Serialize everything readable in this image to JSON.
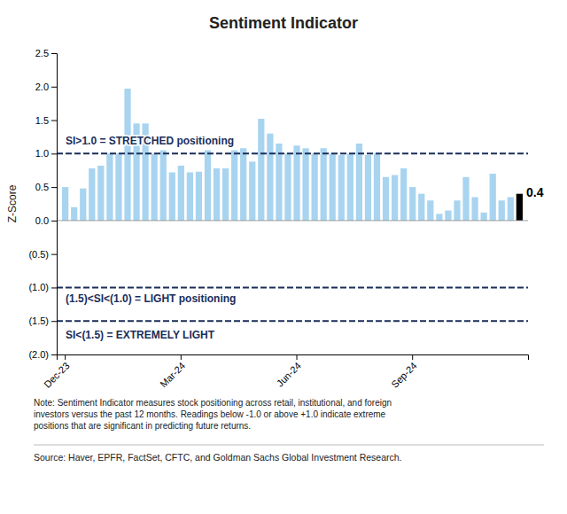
{
  "chart_data": {
    "type": "bar",
    "title": "Sentiment Indicator",
    "y_label": "Z-Score",
    "categories": [
      "Dec-23",
      null,
      null,
      null,
      null,
      null,
      null,
      null,
      null,
      null,
      null,
      null,
      null,
      "Mar-24",
      null,
      null,
      null,
      null,
      null,
      null,
      null,
      null,
      null,
      null,
      null,
      null,
      "Jun-24",
      null,
      null,
      null,
      null,
      null,
      null,
      null,
      null,
      null,
      null,
      null,
      null,
      "Sep-24",
      null,
      null,
      null,
      null,
      null,
      null,
      null,
      null,
      null,
      null,
      null,
      null
    ],
    "values": [
      0.5,
      0.2,
      0.48,
      0.78,
      0.82,
      1.0,
      1.0,
      1.97,
      1.45,
      1.45,
      1.0,
      1.05,
      0.72,
      0.82,
      0.72,
      0.73,
      1.05,
      0.78,
      0.78,
      1.05,
      1.08,
      0.88,
      1.52,
      1.3,
      1.15,
      1.0,
      1.12,
      1.08,
      1.0,
      1.08,
      1.0,
      0.98,
      1.0,
      1.15,
      0.98,
      1.0,
      0.65,
      0.68,
      0.78,
      0.5,
      0.4,
      0.3,
      0.1,
      0.15,
      0.3,
      0.65,
      0.35,
      0.12,
      0.7,
      0.3,
      0.35,
      0.4
    ],
    "colors": [
      "#a8d4f0",
      "#a8d4f0",
      "#a8d4f0",
      "#a8d4f0",
      "#a8d4f0",
      "#a8d4f0",
      "#a8d4f0",
      "#a8d4f0",
      "#a8d4f0",
      "#a8d4f0",
      "#a8d4f0",
      "#a8d4f0",
      "#a8d4f0",
      "#a8d4f0",
      "#a8d4f0",
      "#a8d4f0",
      "#a8d4f0",
      "#a8d4f0",
      "#a8d4f0",
      "#a8d4f0",
      "#a8d4f0",
      "#a8d4f0",
      "#a8d4f0",
      "#a8d4f0",
      "#a8d4f0",
      "#a8d4f0",
      "#a8d4f0",
      "#a8d4f0",
      "#a8d4f0",
      "#a8d4f0",
      "#a8d4f0",
      "#a8d4f0",
      "#a8d4f0",
      "#a8d4f0",
      "#a8d4f0",
      "#a8d4f0",
      "#a8d4f0",
      "#a8d4f0",
      "#a8d4f0",
      "#a8d4f0",
      "#a8d4f0",
      "#a8d4f0",
      "#a8d4f0",
      "#a8d4f0",
      "#a8d4f0",
      "#a8d4f0",
      "#a8d4f0",
      "#a8d4f0",
      "#a8d4f0",
      "#a8d4f0",
      "#a8d4f0",
      "#000000"
    ],
    "ylim": [
      -2.0,
      2.5
    ],
    "yticks": [
      {
        "value": -2.0,
        "label": "(2.0)"
      },
      {
        "value": -1.5,
        "label": "(1.5)"
      },
      {
        "value": -1.0,
        "label": "(1.0)"
      },
      {
        "value": -0.5,
        "label": "(0.5)"
      },
      {
        "value": 0.0,
        "label": "0.0"
      },
      {
        "value": 0.5,
        "label": "0.5"
      },
      {
        "value": 1.0,
        "label": "1.0"
      },
      {
        "value": 1.5,
        "label": "1.5"
      },
      {
        "value": 2.0,
        "label": "2.0"
      },
      {
        "value": 2.5,
        "label": "2.5"
      }
    ],
    "grid": false,
    "reference_lines": [
      1.0,
      -1.0,
      -1.5
    ],
    "reference_line_color": "#1a2e5a",
    "annotations": [
      {
        "text": "0.4",
        "index": 51,
        "y": 0.4
      },
      {
        "text": "SI>1.0 = STRETCHED positioning",
        "y": 1.18
      },
      {
        "text": "(1.5)<SI<(1.0) = LIGHT positioning",
        "y": -1.18
      },
      {
        "text": "SI<(1.5) = EXTREMELY LIGHT",
        "y": -1.72
      }
    ],
    "note": "Note: Sentiment Indicator measures stock positioning across retail, institutional, and foreign\ninvestors versus the past 12 months. Readings below -1.0 or above +1.0 indicate extreme\npositions that are significant in predicting future returns.",
    "source": "Source: Haver, EPFR, FactSet, CFTC, and Goldman Sachs Global Investment Research."
  }
}
